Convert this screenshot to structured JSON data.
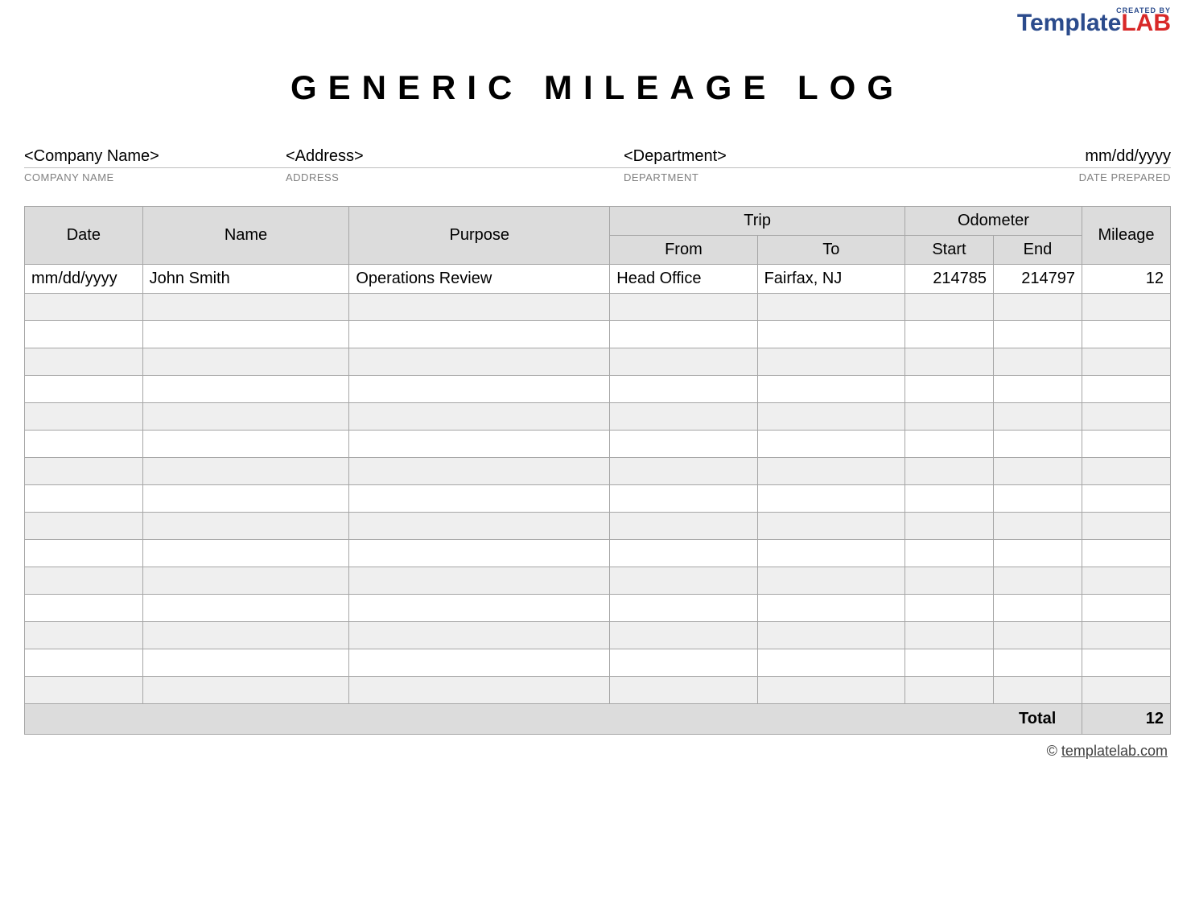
{
  "logo": {
    "created_by": "CREATED BY",
    "name_a": "Template",
    "name_b": "LAB"
  },
  "title": "GENERIC MILEAGE LOG",
  "info": {
    "company_value": "<Company Name>",
    "company_label": "COMPANY NAME",
    "address_value": "<Address>",
    "address_label": "ADDRESS",
    "department_value": "<Department>",
    "department_label": "DEPARTMENT",
    "date_value": "mm/dd/yyyy",
    "date_label": "DATE PREPARED"
  },
  "table": {
    "type": "table",
    "columns": [
      "Date",
      "Name",
      "Purpose",
      "Trip",
      "Odometer",
      "Mileage"
    ],
    "sub_columns": {
      "Trip": [
        "From",
        "To"
      ],
      "Odometer": [
        "Start",
        "End"
      ]
    },
    "header_bg": "#dcdcdc",
    "border_color": "#a6a6a6",
    "alt_row_bg": "#efefef",
    "row_bg": "#ffffff",
    "font_size": 20,
    "col_widths": {
      "date": 120,
      "name": 210,
      "purpose": 265,
      "from": 150,
      "to": 150,
      "start": 90,
      "end": 90,
      "mileage": 90
    },
    "rows": [
      {
        "date": "mm/dd/yyyy",
        "name": "John Smith",
        "purpose": "Operations Review",
        "from": "Head Office",
        "to": "Fairfax, NJ",
        "start": "214785",
        "end": "214797",
        "mileage": "12"
      },
      {
        "date": "",
        "name": "",
        "purpose": "",
        "from": "",
        "to": "",
        "start": "",
        "end": "",
        "mileage": ""
      },
      {
        "date": "",
        "name": "",
        "purpose": "",
        "from": "",
        "to": "",
        "start": "",
        "end": "",
        "mileage": ""
      },
      {
        "date": "",
        "name": "",
        "purpose": "",
        "from": "",
        "to": "",
        "start": "",
        "end": "",
        "mileage": ""
      },
      {
        "date": "",
        "name": "",
        "purpose": "",
        "from": "",
        "to": "",
        "start": "",
        "end": "",
        "mileage": ""
      },
      {
        "date": "",
        "name": "",
        "purpose": "",
        "from": "",
        "to": "",
        "start": "",
        "end": "",
        "mileage": ""
      },
      {
        "date": "",
        "name": "",
        "purpose": "",
        "from": "",
        "to": "",
        "start": "",
        "end": "",
        "mileage": ""
      },
      {
        "date": "",
        "name": "",
        "purpose": "",
        "from": "",
        "to": "",
        "start": "",
        "end": "",
        "mileage": ""
      },
      {
        "date": "",
        "name": "",
        "purpose": "",
        "from": "",
        "to": "",
        "start": "",
        "end": "",
        "mileage": ""
      },
      {
        "date": "",
        "name": "",
        "purpose": "",
        "from": "",
        "to": "",
        "start": "",
        "end": "",
        "mileage": ""
      },
      {
        "date": "",
        "name": "",
        "purpose": "",
        "from": "",
        "to": "",
        "start": "",
        "end": "",
        "mileage": ""
      },
      {
        "date": "",
        "name": "",
        "purpose": "",
        "from": "",
        "to": "",
        "start": "",
        "end": "",
        "mileage": ""
      },
      {
        "date": "",
        "name": "",
        "purpose": "",
        "from": "",
        "to": "",
        "start": "",
        "end": "",
        "mileage": ""
      },
      {
        "date": "",
        "name": "",
        "purpose": "",
        "from": "",
        "to": "",
        "start": "",
        "end": "",
        "mileage": ""
      },
      {
        "date": "",
        "name": "",
        "purpose": "",
        "from": "",
        "to": "",
        "start": "",
        "end": "",
        "mileage": ""
      },
      {
        "date": "",
        "name": "",
        "purpose": "",
        "from": "",
        "to": "",
        "start": "",
        "end": "",
        "mileage": ""
      }
    ],
    "total_label": "Total",
    "total_value": "12"
  },
  "footer": {
    "copyright": "©",
    "link_text": "templatelab.com"
  },
  "colors": {
    "logo_blue": "#2b4b8c",
    "logo_red": "#d82828",
    "label_gray": "#808080",
    "background": "#ffffff"
  }
}
